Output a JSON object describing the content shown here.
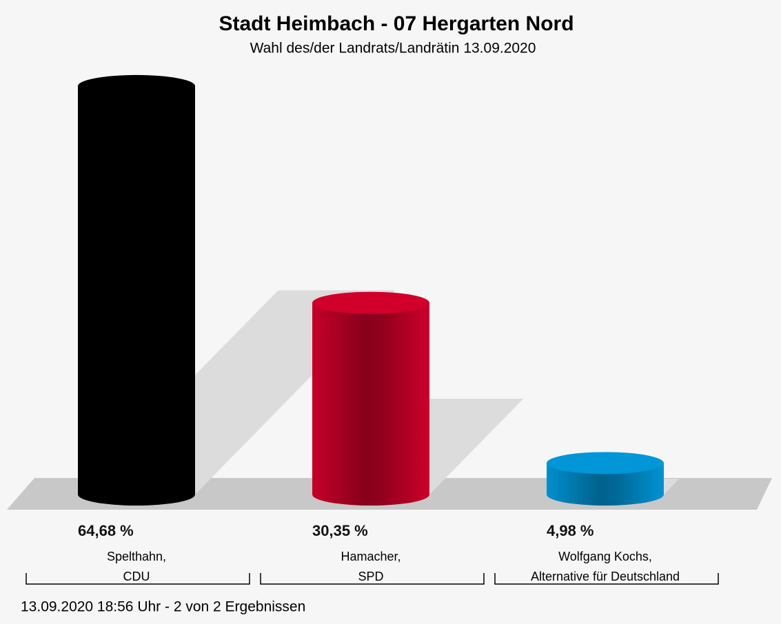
{
  "chart_data": {
    "type": "bar",
    "title": "Stadt Heimbach - 07 Hergarten Nord",
    "subtitle": "Wahl des/der Landrats/Landrätin 13.09.2020",
    "categories": [
      "Spelthahn,\nCDU",
      "Hamacher,\nSPD",
      "Wolfgang Kochs,\nAlternative für Deutschland"
    ],
    "values": [
      64.68,
      30.35,
      4.98
    ],
    "value_labels": [
      "64,68 %",
      "30,35 %",
      "4,98 %"
    ],
    "colors": [
      "#000000",
      "#d0002a",
      "#0096d8"
    ],
    "footer": "13.09.2020 18:56 Uhr - 2 von 2 Ergebnissen"
  }
}
